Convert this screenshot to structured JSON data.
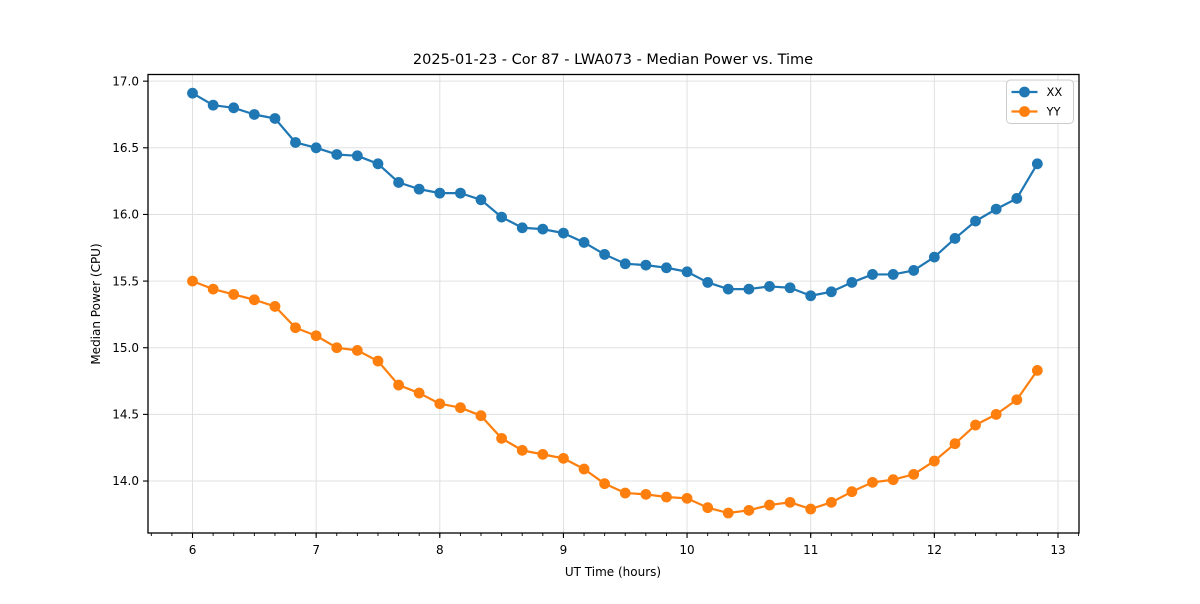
{
  "chart_data": {
    "type": "line",
    "title": "2025-01-23 - Cor 87 - LWA073 - Median Power vs. Time",
    "xlabel": "UT Time (hours)",
    "ylabel": "Median Power (CPU)",
    "xlim": [
      5.64,
      13.17
    ],
    "ylim": [
      13.61,
      17.05
    ],
    "x_ticks": [
      6,
      7,
      8,
      9,
      10,
      11,
      12,
      13
    ],
    "y_ticks": [
      14.0,
      14.5,
      15.0,
      15.5,
      16.0,
      16.5,
      17.0
    ],
    "x_minor_step_hours": 0.1666667,
    "grid": true,
    "legend_position": "upper right",
    "x": [
      6.0,
      6.167,
      6.333,
      6.5,
      6.667,
      6.833,
      7.0,
      7.167,
      7.333,
      7.5,
      7.667,
      7.833,
      8.0,
      8.167,
      8.333,
      8.5,
      8.667,
      8.833,
      9.0,
      9.167,
      9.333,
      9.5,
      9.667,
      9.833,
      10.0,
      10.167,
      10.333,
      10.5,
      10.667,
      10.833,
      11.0,
      11.167,
      11.333,
      11.5,
      11.667,
      11.833,
      12.0,
      12.167,
      12.333,
      12.5,
      12.667,
      12.833
    ],
    "series": [
      {
        "name": "XX",
        "color": "#1f77b4",
        "values": [
          16.91,
          16.82,
          16.8,
          16.75,
          16.72,
          16.54,
          16.5,
          16.45,
          16.44,
          16.38,
          16.24,
          16.19,
          16.16,
          16.16,
          16.11,
          15.98,
          15.9,
          15.89,
          15.86,
          15.79,
          15.7,
          15.63,
          15.62,
          15.6,
          15.57,
          15.49,
          15.44,
          15.44,
          15.46,
          15.45,
          15.39,
          15.42,
          15.49,
          15.55,
          15.55,
          15.58,
          15.68,
          15.82,
          15.95,
          16.04,
          16.12,
          16.38
        ]
      },
      {
        "name": "YY",
        "color": "#ff7f0e",
        "values": [
          15.5,
          15.44,
          15.4,
          15.36,
          15.31,
          15.15,
          15.09,
          15.0,
          14.98,
          14.9,
          14.72,
          14.66,
          14.58,
          14.55,
          14.49,
          14.32,
          14.23,
          14.2,
          14.17,
          14.09,
          13.98,
          13.91,
          13.9,
          13.88,
          13.87,
          13.8,
          13.76,
          13.78,
          13.82,
          13.84,
          13.79,
          13.84,
          13.92,
          13.99,
          14.01,
          14.05,
          14.15,
          14.28,
          14.42,
          14.5,
          14.61,
          14.83
        ]
      }
    ]
  },
  "style_colors": {
    "grid": "#e0e0e0",
    "spine": "#000000",
    "legend_border": "#cccccc",
    "background": "#ffffff"
  }
}
